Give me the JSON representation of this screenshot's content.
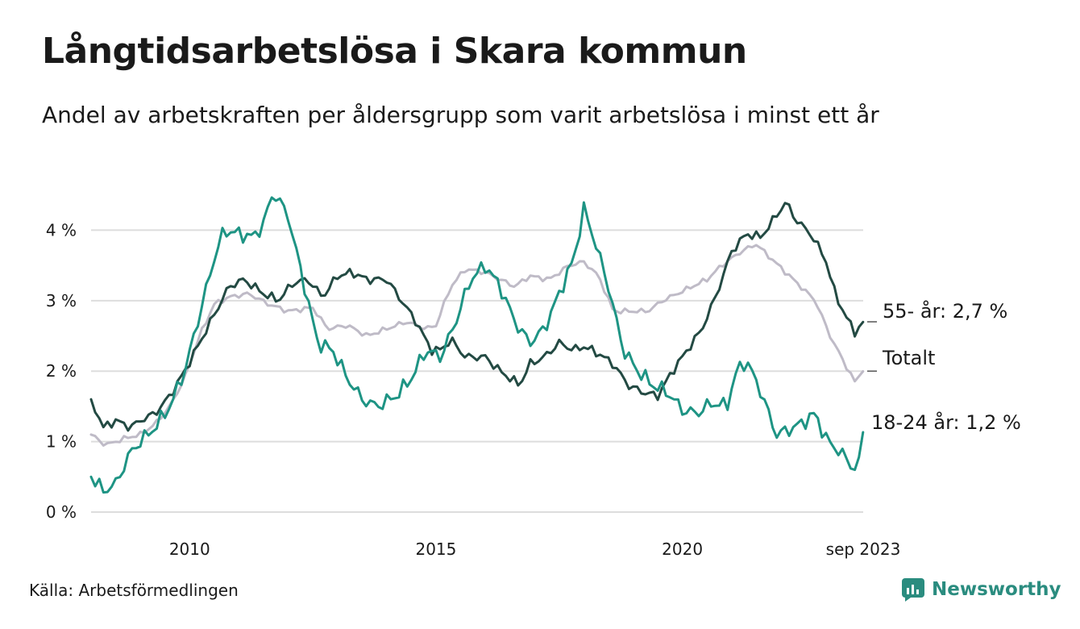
{
  "title": "Långtidsarbetslösa i Skara kommun",
  "subtitle": "Andel av arbetskraften per åldersgrupp som varit arbetslösa i minst ett år",
  "source": "Källa: Arbetsförmedlingen",
  "brand": "Newsworthy",
  "colors": {
    "older": "#234a43",
    "young": "#1e9484",
    "total": "#bfbbc7",
    "grid": "#dddddd",
    "brand": "#2a8c7f"
  },
  "chart_data": {
    "type": "line",
    "title": "Långtidsarbetslösa i Skara kommun",
    "x_unit": "year (decimal, monthly data)",
    "x_range": [
      2008.0,
      2023.67
    ],
    "ylim": [
      0,
      4.6
    ],
    "yticks": [
      0,
      1,
      2,
      3,
      4
    ],
    "ytick_labels": [
      "0 %",
      "1 %",
      "2 %",
      "3 %",
      "4 %"
    ],
    "xticks": [
      2010,
      2015,
      2020,
      2023.67
    ],
    "xtick_labels": [
      "2010",
      "2015",
      "2020",
      "sep 2023"
    ],
    "grid": true,
    "series": [
      {
        "name": "Totalt",
        "key": "total",
        "end_label": "Totalt",
        "knots": [
          [
            2008.0,
            1.1
          ],
          [
            2008.3,
            0.95
          ],
          [
            2008.7,
            1.05
          ],
          [
            2009.0,
            1.1
          ],
          [
            2009.3,
            1.25
          ],
          [
            2009.6,
            1.5
          ],
          [
            2009.9,
            1.9
          ],
          [
            2010.2,
            2.5
          ],
          [
            2010.5,
            2.95
          ],
          [
            2010.8,
            3.05
          ],
          [
            2011.2,
            3.1
          ],
          [
            2011.6,
            2.95
          ],
          [
            2012.0,
            2.85
          ],
          [
            2012.5,
            2.9
          ],
          [
            2012.8,
            2.6
          ],
          [
            2013.2,
            2.65
          ],
          [
            2013.6,
            2.5
          ],
          [
            2014.0,
            2.6
          ],
          [
            2014.4,
            2.7
          ],
          [
            2014.8,
            2.6
          ],
          [
            2015.0,
            2.65
          ],
          [
            2015.3,
            3.2
          ],
          [
            2015.6,
            3.45
          ],
          [
            2016.0,
            3.4
          ],
          [
            2016.3,
            3.3
          ],
          [
            2016.6,
            3.2
          ],
          [
            2016.9,
            3.35
          ],
          [
            2017.3,
            3.3
          ],
          [
            2017.7,
            3.5
          ],
          [
            2018.0,
            3.55
          ],
          [
            2018.3,
            3.35
          ],
          [
            2018.6,
            2.85
          ],
          [
            2018.9,
            2.85
          ],
          [
            2019.3,
            2.85
          ],
          [
            2019.6,
            3.0
          ],
          [
            2019.9,
            3.1
          ],
          [
            2020.2,
            3.2
          ],
          [
            2020.5,
            3.3
          ],
          [
            2020.8,
            3.5
          ],
          [
            2021.2,
            3.7
          ],
          [
            2021.5,
            3.8
          ],
          [
            2021.8,
            3.6
          ],
          [
            2022.1,
            3.4
          ],
          [
            2022.4,
            3.2
          ],
          [
            2022.7,
            3.0
          ],
          [
            2023.0,
            2.5
          ],
          [
            2023.3,
            2.1
          ],
          [
            2023.5,
            1.85
          ],
          [
            2023.67,
            2.0
          ]
        ]
      },
      {
        "name": "55- år",
        "key": "older",
        "end_label": "55- år: 2,7 %",
        "knots": [
          [
            2008.0,
            1.6
          ],
          [
            2008.25,
            1.2
          ],
          [
            2008.5,
            1.3
          ],
          [
            2008.8,
            1.2
          ],
          [
            2009.0,
            1.3
          ],
          [
            2009.3,
            1.4
          ],
          [
            2009.6,
            1.65
          ],
          [
            2009.9,
            2.0
          ],
          [
            2010.2,
            2.4
          ],
          [
            2010.5,
            2.8
          ],
          [
            2010.8,
            3.2
          ],
          [
            2011.1,
            3.3
          ],
          [
            2011.5,
            3.1
          ],
          [
            2011.8,
            3.0
          ],
          [
            2012.1,
            3.25
          ],
          [
            2012.4,
            3.3
          ],
          [
            2012.7,
            3.05
          ],
          [
            2013.0,
            3.35
          ],
          [
            2013.3,
            3.4
          ],
          [
            2013.6,
            3.3
          ],
          [
            2014.0,
            3.3
          ],
          [
            2014.3,
            3.0
          ],
          [
            2014.6,
            2.7
          ],
          [
            2014.9,
            2.3
          ],
          [
            2015.1,
            2.3
          ],
          [
            2015.3,
            2.45
          ],
          [
            2015.6,
            2.2
          ],
          [
            2016.0,
            2.2
          ],
          [
            2016.3,
            2.0
          ],
          [
            2016.7,
            1.8
          ],
          [
            2016.9,
            2.1
          ],
          [
            2017.2,
            2.2
          ],
          [
            2017.5,
            2.4
          ],
          [
            2017.8,
            2.3
          ],
          [
            2018.0,
            2.35
          ],
          [
            2018.3,
            2.25
          ],
          [
            2018.6,
            2.1
          ],
          [
            2018.9,
            1.8
          ],
          [
            2019.2,
            1.7
          ],
          [
            2019.5,
            1.65
          ],
          [
            2019.8,
            2.0
          ],
          [
            2020.1,
            2.3
          ],
          [
            2020.4,
            2.6
          ],
          [
            2020.7,
            3.1
          ],
          [
            2021.0,
            3.7
          ],
          [
            2021.3,
            3.95
          ],
          [
            2021.6,
            3.9
          ],
          [
            2021.9,
            4.2
          ],
          [
            2022.1,
            4.4
          ],
          [
            2022.3,
            4.15
          ],
          [
            2022.6,
            3.95
          ],
          [
            2022.9,
            3.6
          ],
          [
            2023.1,
            3.1
          ],
          [
            2023.3,
            2.8
          ],
          [
            2023.5,
            2.55
          ],
          [
            2023.67,
            2.7
          ]
        ]
      },
      {
        "name": "18-24 år",
        "key": "young",
        "end_label": "18-24 år: 1,2 %",
        "knots": [
          [
            2008.0,
            0.5
          ],
          [
            2008.25,
            0.3
          ],
          [
            2008.5,
            0.4
          ],
          [
            2008.8,
            0.85
          ],
          [
            2009.0,
            1.0
          ],
          [
            2009.3,
            1.2
          ],
          [
            2009.6,
            1.5
          ],
          [
            2009.9,
            2.0
          ],
          [
            2010.2,
            2.8
          ],
          [
            2010.5,
            3.6
          ],
          [
            2010.7,
            4.0
          ],
          [
            2011.0,
            3.95
          ],
          [
            2011.3,
            3.9
          ],
          [
            2011.5,
            4.1
          ],
          [
            2011.7,
            4.55
          ],
          [
            2012.0,
            4.2
          ],
          [
            2012.3,
            3.3
          ],
          [
            2012.6,
            2.4
          ],
          [
            2012.9,
            2.3
          ],
          [
            2013.2,
            1.9
          ],
          [
            2013.5,
            1.6
          ],
          [
            2013.8,
            1.5
          ],
          [
            2014.2,
            1.65
          ],
          [
            2014.5,
            1.9
          ],
          [
            2014.8,
            2.3
          ],
          [
            2015.1,
            2.2
          ],
          [
            2015.4,
            2.7
          ],
          [
            2015.7,
            3.3
          ],
          [
            2016.0,
            3.5
          ],
          [
            2016.3,
            3.2
          ],
          [
            2016.6,
            2.7
          ],
          [
            2016.9,
            2.4
          ],
          [
            2017.2,
            2.6
          ],
          [
            2017.5,
            3.1
          ],
          [
            2017.8,
            3.6
          ],
          [
            2018.0,
            4.3
          ],
          [
            2018.2,
            3.9
          ],
          [
            2018.5,
            3.2
          ],
          [
            2018.8,
            2.3
          ],
          [
            2019.1,
            2.0
          ],
          [
            2019.4,
            1.8
          ],
          [
            2019.7,
            1.7
          ],
          [
            2020.0,
            1.45
          ],
          [
            2020.3,
            1.4
          ],
          [
            2020.6,
            1.55
          ],
          [
            2020.9,
            1.5
          ],
          [
            2021.1,
            2.0
          ],
          [
            2021.3,
            2.15
          ],
          [
            2021.6,
            1.7
          ],
          [
            2021.9,
            1.1
          ],
          [
            2022.1,
            1.15
          ],
          [
            2022.4,
            1.25
          ],
          [
            2022.7,
            1.4
          ],
          [
            2022.9,
            1.05
          ],
          [
            2023.2,
            0.85
          ],
          [
            2023.4,
            0.7
          ],
          [
            2023.55,
            0.55
          ],
          [
            2023.67,
            1.15
          ]
        ]
      }
    ]
  }
}
